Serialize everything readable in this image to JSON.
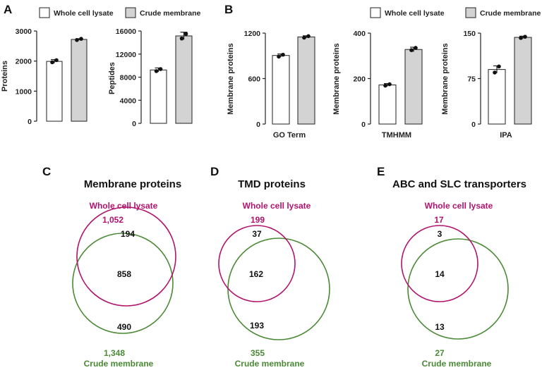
{
  "panels": {
    "A": "A",
    "B": "B",
    "C": "C",
    "D": "D",
    "E": "E"
  },
  "legend": {
    "whole": "Whole cell lysate",
    "crude": "Crude membrane"
  },
  "colors": {
    "whole_fill": "#ffffff",
    "crude_fill": "#d3d3d3",
    "axis": "#222222",
    "magenta": "#b0146e",
    "green": "#4a8a35"
  },
  "chart_data": [
    {
      "id": "A1",
      "type": "bar",
      "ylabel": "Proteins",
      "xlabel": "",
      "ylim": [
        0,
        3000
      ],
      "yticks": [
        0,
        1000,
        2000,
        3000
      ],
      "yticklabels": [
        "0",
        "1000",
        "2000",
        "3000"
      ],
      "categories": [
        "Whole cell lysate",
        "Crude membrane"
      ],
      "values": [
        1990,
        2720
      ],
      "errors": [
        60,
        25
      ],
      "points": [
        [
          1960,
          2030
        ],
        [
          2700,
          2740
        ]
      ]
    },
    {
      "id": "A2",
      "type": "bar",
      "ylabel": "Peptides",
      "xlabel": "",
      "ylim": [
        0,
        16000
      ],
      "yticks": [
        0,
        4000,
        8000,
        12000,
        16000
      ],
      "yticklabels": [
        "0",
        "4000",
        "8000",
        "12000",
        "16000"
      ],
      "categories": [
        "Whole cell lysate",
        "Crude membrane"
      ],
      "values": [
        9250,
        15150
      ],
      "errors": [
        350,
        650
      ],
      "points": [
        [
          9050,
          9400
        ],
        [
          14700,
          15500
        ]
      ]
    },
    {
      "id": "B1",
      "type": "bar",
      "ylabel": "Membrane proteins",
      "xlabel": "GO Term",
      "ylim": [
        0,
        1200
      ],
      "yticks": [
        0,
        600,
        1200
      ],
      "yticklabels": [
        "0",
        "600",
        "1200"
      ],
      "categories": [
        "Whole cell lysate",
        "Crude membrane"
      ],
      "values": [
        905,
        1150
      ],
      "errors": [
        20,
        15
      ],
      "points": [
        [
          890,
          915
        ],
        [
          1140,
          1160
        ]
      ]
    },
    {
      "id": "B2",
      "type": "bar",
      "ylabel": "Membrane proteins",
      "xlabel": "TMHMM",
      "ylim": [
        0,
        400
      ],
      "yticks": [
        0,
        200,
        400
      ],
      "yticklabels": [
        "0",
        "200",
        "400"
      ],
      "categories": [
        "Whole cell lysate",
        "Crude membrane"
      ],
      "values": [
        172,
        328
      ],
      "errors": [
        6,
        10
      ],
      "points": [
        [
          169,
          175
        ],
        [
          325,
          335
        ]
      ]
    },
    {
      "id": "B3",
      "type": "bar",
      "ylabel": "Membrane proteins",
      "xlabel": "IPA",
      "ylim": [
        0,
        150
      ],
      "yticks": [
        0,
        75,
        150
      ],
      "yticklabels": [
        "0",
        "75",
        "150"
      ],
      "categories": [
        "Whole cell lysate",
        "Crude membrane"
      ],
      "values": [
        90,
        143
      ],
      "errors": [
        6,
        2
      ],
      "points": [
        [
          85,
          95
        ],
        [
          142,
          144
        ]
      ]
    }
  ],
  "venns": [
    {
      "title": "Membrane proteins",
      "set1_label": "Whole cell lysate",
      "set1_total": "1,052",
      "only1": "194",
      "overlap": "858",
      "only2": "490",
      "set2_total": "1,348",
      "set2_label": "Crude membrane"
    },
    {
      "title": "TMD proteins",
      "set1_label": "Whole cell lysate",
      "set1_total": "199",
      "only1": "37",
      "overlap": "162",
      "only2": "193",
      "set2_total": "355",
      "set2_label": "Crude membrane"
    },
    {
      "title": "ABC and SLC transporters",
      "set1_label": "Whole cell lysate",
      "set1_total": "17",
      "only1": "3",
      "overlap": "14",
      "only2": "13",
      "set2_total": "27",
      "set2_label": "Crude membrane"
    }
  ]
}
